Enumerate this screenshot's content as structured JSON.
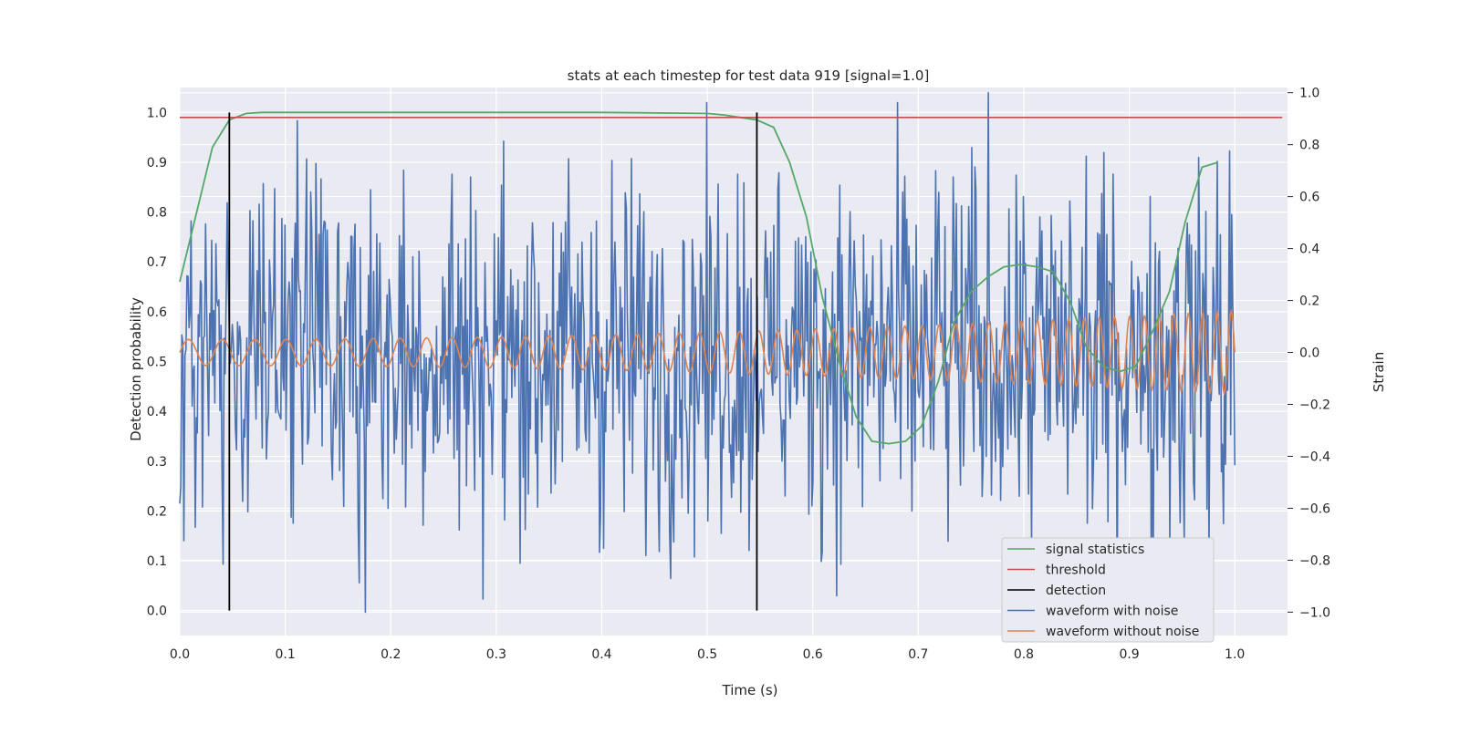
{
  "chart_data": {
    "type": "line",
    "title": "stats at each timestep for test data 919 [signal=1.0]",
    "xlabel": "Time (s)",
    "ylabel": "Detection probability",
    "ylabel_right": "Strain",
    "xlim": [
      0.0,
      1.05
    ],
    "ylim": [
      -0.05,
      1.05
    ],
    "ylim_right": [
      -1.09,
      1.02
    ],
    "x_ticks": [
      0.0,
      0.1,
      0.2,
      0.3,
      0.4,
      0.5,
      0.6,
      0.7,
      0.8,
      0.9,
      1.0
    ],
    "x_tick_labels": [
      "0.0",
      "0.1",
      "0.2",
      "0.3",
      "0.4",
      "0.5",
      "0.6",
      "0.7",
      "0.8",
      "0.9",
      "1.0"
    ],
    "y_ticks": [
      0.0,
      0.1,
      0.2,
      0.3,
      0.4,
      0.5,
      0.6,
      0.7,
      0.8,
      0.9,
      1.0
    ],
    "y_tick_labels": [
      "0.0",
      "0.1",
      "0.2",
      "0.3",
      "0.4",
      "0.5",
      "0.6",
      "0.7",
      "0.8",
      "0.9",
      "1.0"
    ],
    "y_right_ticks": [
      -1.0,
      -0.8,
      -0.6,
      -0.4,
      -0.2,
      0.0,
      0.2,
      0.4,
      0.6,
      0.8,
      1.0
    ],
    "y_right_tick_labels": [
      "−1.0",
      "−0.8",
      "−0.6",
      "−0.4",
      "−0.2",
      "0.0",
      "0.2",
      "0.4",
      "0.6",
      "0.8",
      "1.0"
    ],
    "grid": true,
    "legend_position": "lower-right",
    "series": [
      {
        "name": "signal statistics",
        "axis": "left",
        "color": "#55a868",
        "x": [
          0.0,
          0.031,
          0.047,
          0.063,
          0.078,
          0.094,
          0.2,
          0.3,
          0.4,
          0.5,
          0.516,
          0.531,
          0.547,
          0.563,
          0.578,
          0.594,
          0.609,
          0.625,
          0.641,
          0.656,
          0.672,
          0.688,
          0.703,
          0.719,
          0.734,
          0.75,
          0.766,
          0.781,
          0.797,
          0.813,
          0.828,
          0.844,
          0.859,
          0.875,
          0.891,
          0.906,
          0.922,
          0.938,
          0.953,
          0.969,
          0.984
        ],
        "y": [
          0.66,
          0.93,
          0.985,
          0.998,
          1.0,
          1.0,
          1.0,
          1.0,
          1.0,
          0.998,
          0.995,
          0.99,
          0.985,
          0.97,
          0.9,
          0.79,
          0.63,
          0.5,
          0.39,
          0.34,
          0.335,
          0.34,
          0.37,
          0.46,
          0.58,
          0.64,
          0.67,
          0.69,
          0.695,
          0.69,
          0.68,
          0.62,
          0.53,
          0.49,
          0.48,
          0.49,
          0.56,
          0.64,
          0.78,
          0.89,
          0.9
        ]
      },
      {
        "name": "threshold",
        "axis": "left",
        "color": "#c44e52",
        "x": [
          0.0,
          1.045
        ],
        "y": [
          0.99,
          0.99
        ]
      },
      {
        "name": "detection",
        "axis": "left",
        "color": "#000000",
        "vlines": [
          0.047,
          0.547
        ],
        "y": [
          0.0,
          1.0
        ]
      },
      {
        "name": "waveform with noise",
        "axis": "right",
        "color": "#4c72b0",
        "x_range": [
          0.0,
          1.0
        ],
        "points": 1024,
        "approx_amplitude": 0.35,
        "y_min": -1.0,
        "y_max": 1.0
      },
      {
        "name": "waveform without noise",
        "axis": "right",
        "color": "#dd8452",
        "x_range": [
          0.0,
          1.0
        ],
        "amplitude_start": 0.05,
        "amplitude_end": 0.16,
        "freq_start_hz": 30,
        "freq_end_hz": 75
      }
    ]
  }
}
